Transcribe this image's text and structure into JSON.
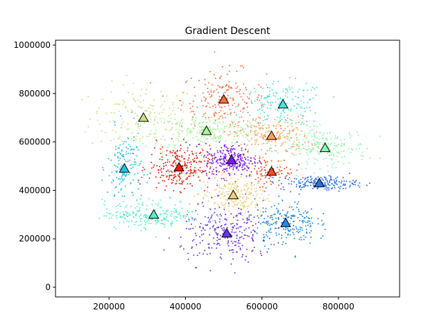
{
  "chart_data": {
    "type": "scatter",
    "title": "Gradient Descent",
    "xlabel": "",
    "ylabel": "",
    "xlim": [
      60000,
      960000
    ],
    "ylim": [
      -40000,
      1020000
    ],
    "x_ticks": [
      200000,
      400000,
      600000,
      800000
    ],
    "y_ticks": [
      0,
      200000,
      400000,
      600000,
      800000,
      1000000
    ],
    "x_tick_labels": [
      "200000",
      "400000",
      "600000",
      "800000"
    ],
    "y_tick_labels": [
      "0",
      "200000",
      "400000",
      "600000",
      "800000",
      "1000000"
    ],
    "grid": false,
    "clusters": [
      {
        "color": "#c6e27e",
        "center": [
          290000,
          700000
        ],
        "spread": [
          70000,
          70000
        ],
        "n": 170
      },
      {
        "color": "#ff6e40",
        "center": [
          500000,
          775000
        ],
        "spread": [
          55000,
          60000
        ],
        "n": 200
      },
      {
        "color": "#46e6d8",
        "center": [
          655000,
          755000
        ],
        "spread": [
          55000,
          45000
        ],
        "n": 160
      },
      {
        "color": "#a7f59a",
        "center": [
          455000,
          645000
        ],
        "spread": [
          70000,
          35000
        ],
        "n": 230
      },
      {
        "color": "#ffa155",
        "center": [
          625000,
          625000
        ],
        "spread": [
          50000,
          40000
        ],
        "n": 200
      },
      {
        "color": "#8df7ad",
        "center": [
          765000,
          575000
        ],
        "spread": [
          55000,
          40000
        ],
        "n": 200
      },
      {
        "color": "#22c3e6",
        "center": [
          240000,
          490000
        ],
        "spread": [
          22000,
          80000
        ],
        "n": 150
      },
      {
        "color": "#ee1e10",
        "center": [
          383000,
          495000
        ],
        "spread": [
          40000,
          45000
        ],
        "n": 260
      },
      {
        "color": "#7c18f5",
        "center": [
          520000,
          525000
        ],
        "spread": [
          35000,
          35000
        ],
        "n": 250
      },
      {
        "color": "#ff4a22",
        "center": [
          625000,
          477000
        ],
        "spread": [
          30000,
          30000
        ],
        "n": 90
      },
      {
        "color": "#2b6fef",
        "center": [
          750000,
          430000
        ],
        "spread": [
          50000,
          15000
        ],
        "n": 180
      },
      {
        "color": "#edce7a",
        "center": [
          525000,
          380000
        ],
        "spread": [
          45000,
          40000
        ],
        "n": 230
      },
      {
        "color": "#52f3c4",
        "center": [
          317000,
          300000
        ],
        "spread": [
          65000,
          30000
        ],
        "n": 210
      },
      {
        "color": "#1f8ae6",
        "center": [
          662000,
          265000
        ],
        "spread": [
          40000,
          45000
        ],
        "n": 220
      },
      {
        "color": "#6a34e8",
        "center": [
          508000,
          222000
        ],
        "spread": [
          60000,
          60000
        ],
        "n": 260
      }
    ],
    "centroids": [
      {
        "x": 290000,
        "y": 700000,
        "color": "#c6e27e"
      },
      {
        "x": 500000,
        "y": 775000,
        "color": "#ff6e40"
      },
      {
        "x": 655000,
        "y": 755000,
        "color": "#46e6d8"
      },
      {
        "x": 455000,
        "y": 645000,
        "color": "#a7f59a"
      },
      {
        "x": 625000,
        "y": 625000,
        "color": "#ffa155"
      },
      {
        "x": 765000,
        "y": 575000,
        "color": "#8df7ad"
      },
      {
        "x": 240000,
        "y": 490000,
        "color": "#22c3e6"
      },
      {
        "x": 383000,
        "y": 495000,
        "color": "#ee1e10"
      },
      {
        "x": 520000,
        "y": 525000,
        "color": "#7c18f5"
      },
      {
        "x": 625000,
        "y": 477000,
        "color": "#ff4a22"
      },
      {
        "x": 750000,
        "y": 430000,
        "color": "#2b6fef"
      },
      {
        "x": 525000,
        "y": 380000,
        "color": "#edce7a"
      },
      {
        "x": 317000,
        "y": 300000,
        "color": "#52f3c4"
      },
      {
        "x": 662000,
        "y": 265000,
        "color": "#1f8ae6"
      },
      {
        "x": 508000,
        "y": 222000,
        "color": "#6a34e8"
      }
    ]
  }
}
